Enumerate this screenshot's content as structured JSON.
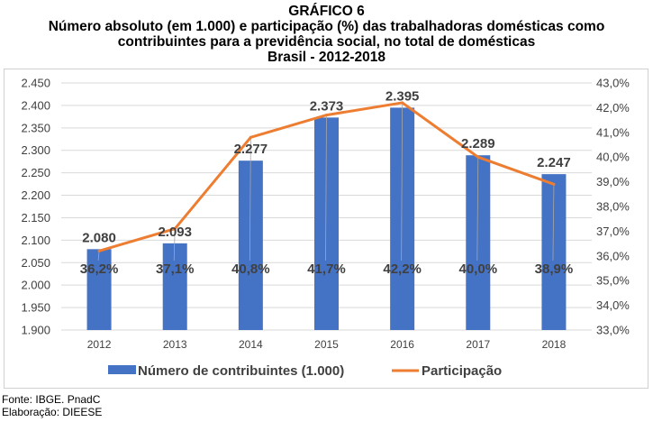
{
  "title": {
    "line1": "GRÁFICO 6",
    "line2": "Número absoluto (em 1.000) e participação (%) das trabalhadoras domésticas como",
    "line3": "contribuintes para a previdência social, no total de domésticas",
    "line4": "Brasil - 2012-2018"
  },
  "footer": {
    "source": "Fonte: IBGE. PnadC",
    "elaboration": "Elaboração: DIEESE"
  },
  "colors": {
    "bar": "#4472c4",
    "line": "#ed7d31",
    "grid": "#d9d9d9"
  },
  "chart_data": {
    "type": "bar+line",
    "categories": [
      "2012",
      "2013",
      "2014",
      "2015",
      "2016",
      "2017",
      "2018"
    ],
    "series": [
      {
        "name": "Número de contribuintes (1.000)",
        "type": "bar",
        "axis": "left",
        "values": [
          2080,
          2093,
          2277,
          2373,
          2395,
          2289,
          2247
        ],
        "labels": [
          "2.080",
          "2.093",
          "2.277",
          "2.373",
          "2.395",
          "2.289",
          "2.247"
        ]
      },
      {
        "name": "Participação",
        "type": "line",
        "axis": "right",
        "values": [
          36.2,
          37.1,
          40.8,
          41.7,
          42.2,
          40.0,
          38.9
        ],
        "labels": [
          "36,2%",
          "37,1%",
          "40,8%",
          "41,7%",
          "42,2%",
          "40,0%",
          "38,9%"
        ]
      }
    ],
    "y_left": {
      "range": [
        1900,
        2450
      ],
      "ticks": [
        1900,
        1950,
        2000,
        2050,
        2100,
        2150,
        2200,
        2250,
        2300,
        2350,
        2400,
        2450
      ],
      "tick_labels": [
        "1.900",
        "1.950",
        "2.000",
        "2.050",
        "2.100",
        "2.150",
        "2.200",
        "2.250",
        "2.300",
        "2.350",
        "2.400",
        "2.450"
      ]
    },
    "y_right": {
      "range": [
        33.0,
        43.0
      ],
      "ticks": [
        33,
        34,
        35,
        36,
        37,
        38,
        39,
        40,
        41,
        42,
        43
      ],
      "tick_labels": [
        "33,0%",
        "34,0%",
        "35,0%",
        "36,0%",
        "37,0%",
        "38,0%",
        "39,0%",
        "40,0%",
        "41,0%",
        "42,0%",
        "43,0%"
      ]
    },
    "grid": true,
    "legend_position": "bottom"
  }
}
